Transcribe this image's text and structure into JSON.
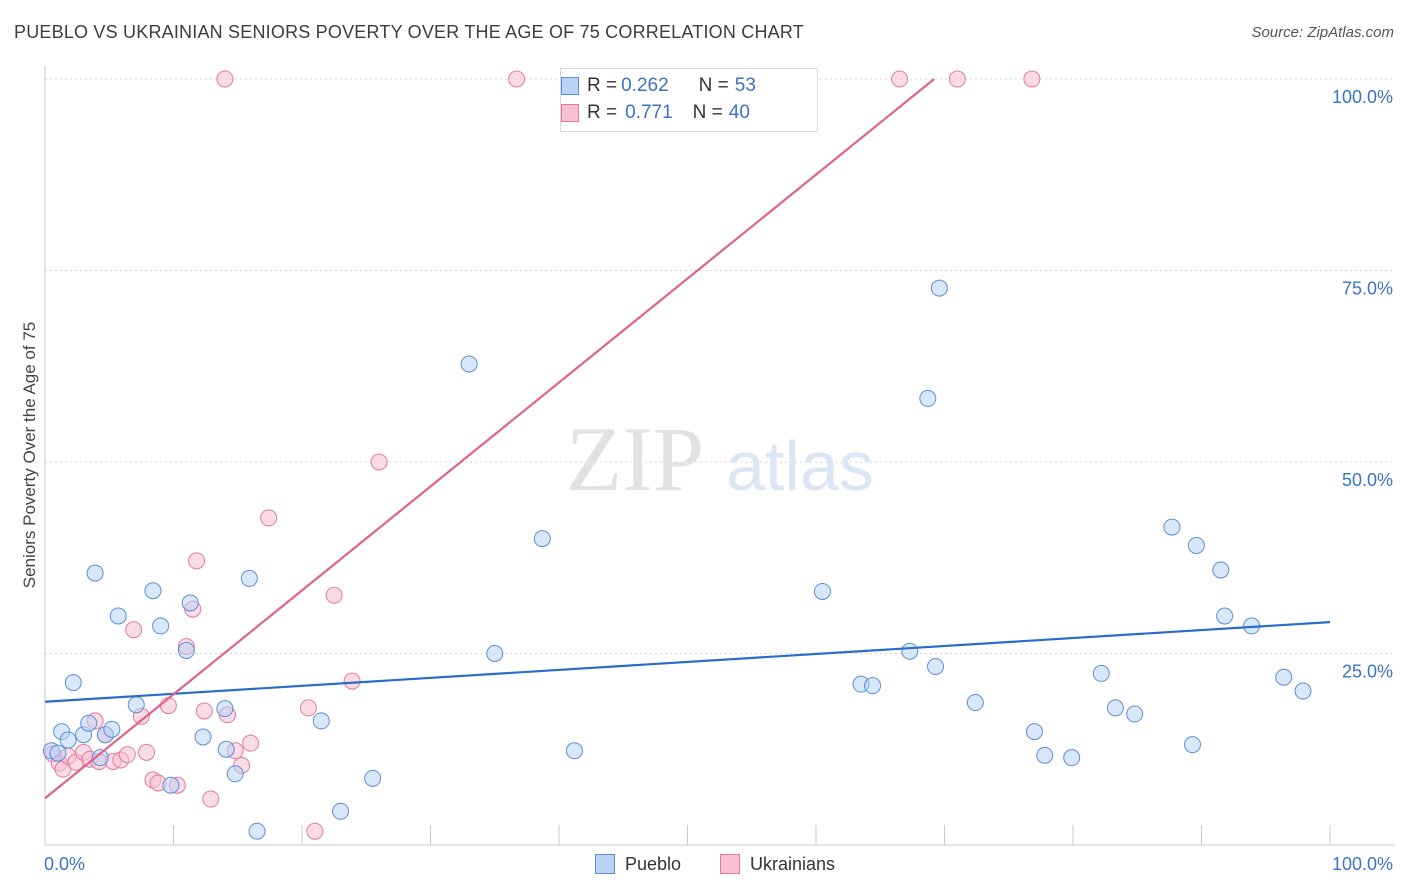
{
  "title": "PUEBLO VS UKRAINIAN SENIORS POVERTY OVER THE AGE OF 75 CORRELATION CHART",
  "source": "Source: ZipAtlas.com",
  "watermark": {
    "zip": "ZIP",
    "atlas": "atlas"
  },
  "legend_stats": {
    "pueblo": {
      "r_label": "R = ",
      "r_value": "0.262",
      "n_label": "N = ",
      "n_value": "53"
    },
    "ukrainians": {
      "r_label": "R = ",
      "r_value": "0.771",
      "n_label": "N = ",
      "n_value": "40"
    }
  },
  "colors": {
    "pueblo_fill": "#b8d3f5",
    "pueblo_stroke": "#5a8fd6",
    "pueblo_line": "#2a6cc7",
    "ukr_fill": "#f7c0d2",
    "ukr_stroke": "#e27a9c",
    "ukr_line": "#e0628e",
    "tick_text": "#3a73c4",
    "grid": "#d5d5d5"
  },
  "chart_data": {
    "type": "scatter",
    "title": "PUEBLO VS UKRAINIAN SENIORS POVERTY OVER THE AGE OF 75 CORRELATION CHART",
    "xlabel": "",
    "ylabel": "Seniors Poverty Over the Age of 75",
    "xlim": [
      0,
      100
    ],
    "ylim": [
      0,
      100
    ],
    "x_tick_labels": [
      "0.0%",
      "100.0%"
    ],
    "y_tick_labels": [
      {
        "value": 25,
        "label": "25.0%"
      },
      {
        "value": 50,
        "label": "50.0%"
      },
      {
        "value": 75,
        "label": "75.0%"
      },
      {
        "value": 100,
        "label": "100.0%"
      }
    ],
    "series": [
      {
        "name": "Pueblo",
        "points": [
          [
            0.5,
            12.3
          ],
          [
            1.0,
            12.0
          ],
          [
            1.3,
            14.8
          ],
          [
            1.8,
            13.7
          ],
          [
            2.2,
            21.2
          ],
          [
            3.0,
            14.4
          ],
          [
            3.4,
            15.9
          ],
          [
            3.9,
            35.5
          ],
          [
            4.3,
            11.4
          ],
          [
            4.7,
            14.4
          ],
          [
            5.2,
            15.1
          ],
          [
            5.7,
            29.9
          ],
          [
            7.1,
            18.3
          ],
          [
            8.4,
            33.2
          ],
          [
            9.0,
            28.6
          ],
          [
            9.8,
            7.8
          ],
          [
            11.0,
            25.4
          ],
          [
            11.3,
            31.6
          ],
          [
            12.3,
            14.1
          ],
          [
            14.0,
            17.8
          ],
          [
            14.1,
            12.5
          ],
          [
            14.8,
            9.3
          ],
          [
            15.9,
            34.8
          ],
          [
            16.5,
            1.8
          ],
          [
            21.5,
            16.2
          ],
          [
            23.0,
            4.4
          ],
          [
            25.5,
            8.7
          ],
          [
            33.0,
            62.8
          ],
          [
            35.0,
            25.0
          ],
          [
            38.7,
            40.0
          ],
          [
            41.2,
            12.3
          ],
          [
            60.5,
            33.1
          ],
          [
            63.5,
            21.0
          ],
          [
            64.4,
            20.8
          ],
          [
            67.3,
            25.3
          ],
          [
            68.7,
            58.3
          ],
          [
            69.3,
            23.3
          ],
          [
            69.6,
            72.7
          ],
          [
            72.4,
            18.6
          ],
          [
            77.0,
            14.8
          ],
          [
            77.8,
            11.7
          ],
          [
            79.9,
            11.4
          ],
          [
            82.2,
            22.4
          ],
          [
            83.3,
            17.9
          ],
          [
            84.8,
            17.1
          ],
          [
            87.7,
            41.5
          ],
          [
            89.3,
            13.1
          ],
          [
            89.6,
            39.1
          ],
          [
            91.5,
            35.9
          ],
          [
            91.8,
            29.9
          ],
          [
            93.9,
            28.6
          ],
          [
            96.4,
            21.9
          ],
          [
            97.9,
            20.1
          ]
        ],
        "trend": {
          "x": [
            0,
            100
          ],
          "y": [
            18.7,
            29.1
          ]
        }
      },
      {
        "name": "Ukrainians",
        "points": [
          [
            0.6,
            11.9
          ],
          [
            1.1,
            10.7
          ],
          [
            1.4,
            9.9
          ],
          [
            1.8,
            11.6
          ],
          [
            2.4,
            10.8
          ],
          [
            3.0,
            12.1
          ],
          [
            3.5,
            11.2
          ],
          [
            3.9,
            16.2
          ],
          [
            4.2,
            10.9
          ],
          [
            4.7,
            14.4
          ],
          [
            5.3,
            10.9
          ],
          [
            5.9,
            11.1
          ],
          [
            6.4,
            11.8
          ],
          [
            6.9,
            28.1
          ],
          [
            7.5,
            16.8
          ],
          [
            7.9,
            12.1
          ],
          [
            8.4,
            8.5
          ],
          [
            8.8,
            8.1
          ],
          [
            9.6,
            18.2
          ],
          [
            10.3,
            7.8
          ],
          [
            11.0,
            25.9
          ],
          [
            11.5,
            30.8
          ],
          [
            11.8,
            37.1
          ],
          [
            12.4,
            17.5
          ],
          [
            12.9,
            6.0
          ],
          [
            14.0,
            100
          ],
          [
            14.2,
            17.0
          ],
          [
            14.8,
            12.3
          ],
          [
            15.3,
            10.4
          ],
          [
            16.0,
            13.3
          ],
          [
            17.4,
            42.7
          ],
          [
            20.5,
            17.9
          ],
          [
            21.0,
            1.8
          ],
          [
            22.5,
            32.6
          ],
          [
            23.9,
            21.4
          ],
          [
            26.0,
            50.0
          ],
          [
            36.7,
            100
          ],
          [
            66.5,
            100
          ],
          [
            71.0,
            100
          ],
          [
            76.8,
            100
          ]
        ],
        "trend": {
          "x": [
            0,
            69.2
          ],
          "y": [
            6.1,
            100
          ]
        }
      }
    ]
  },
  "bottom_legend": [
    {
      "label": "Pueblo"
    },
    {
      "label": "Ukrainians"
    }
  ]
}
